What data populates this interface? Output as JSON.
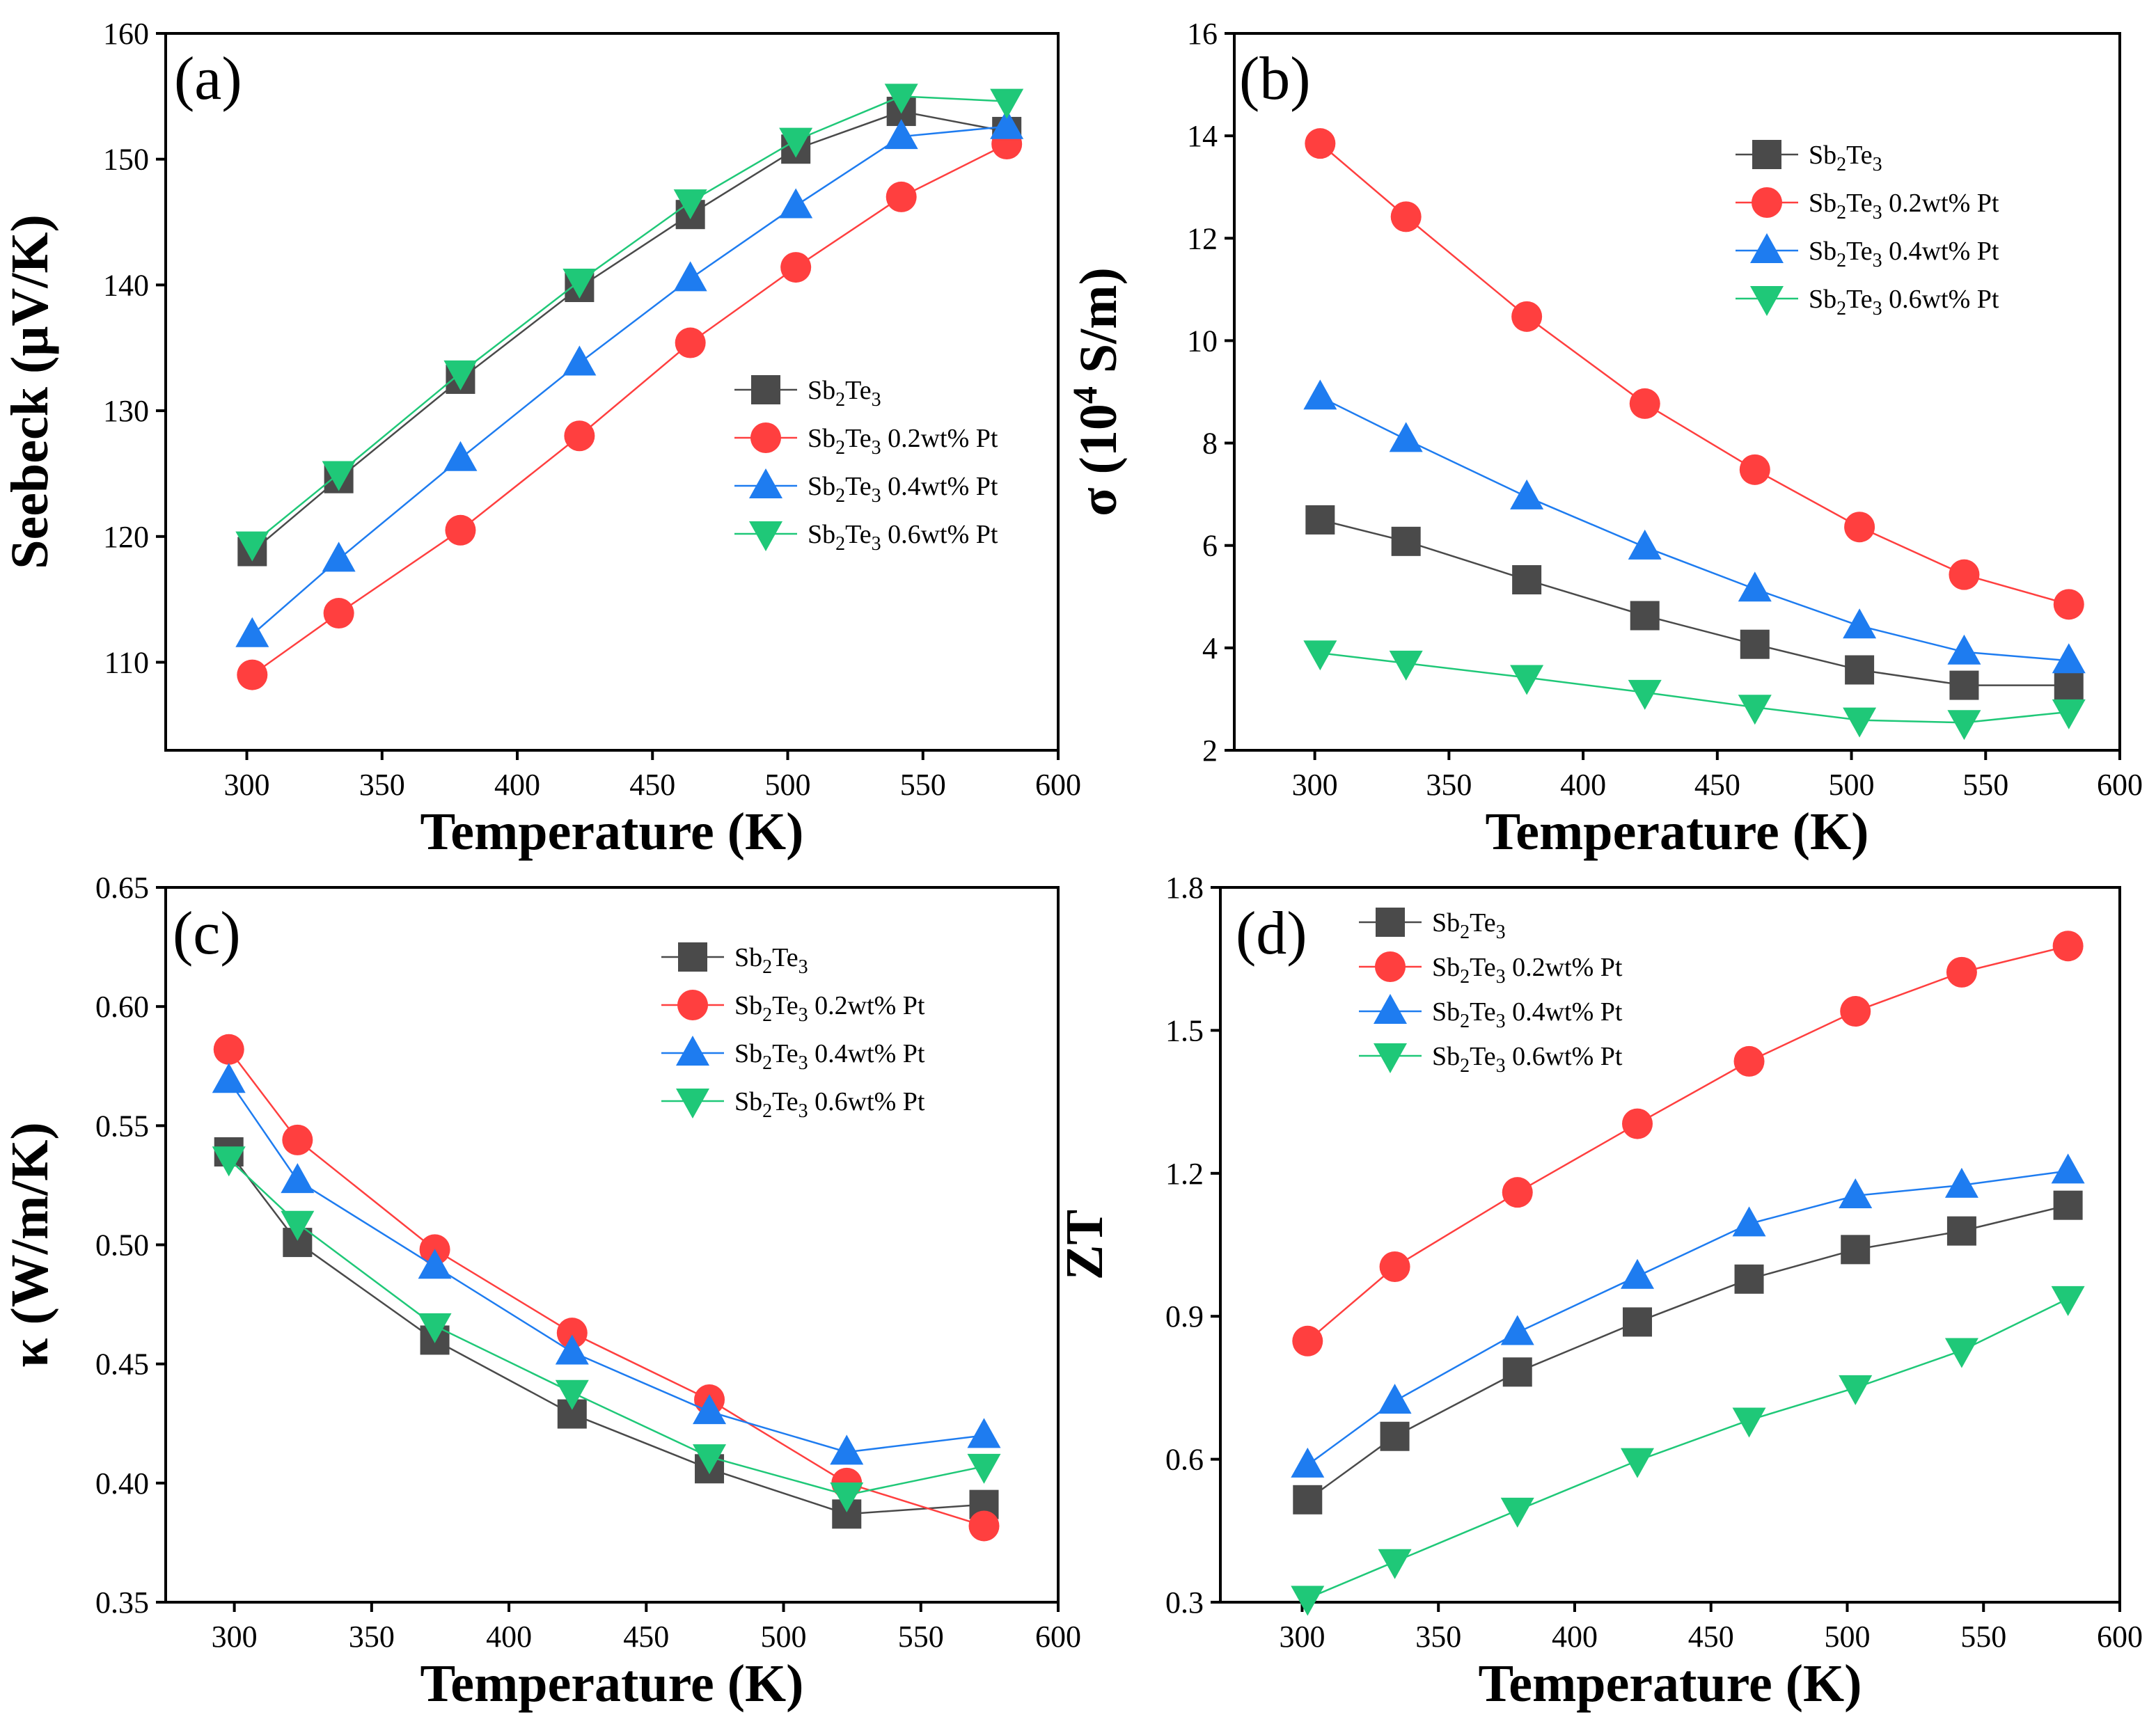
{
  "chart_data": [
    {
      "type": "line",
      "panel_label": "(a)",
      "title": "",
      "xlabel": "Temperature (K)",
      "ylabel": "Seebeck (μV/K)",
      "xlim": [
        270,
        600
      ],
      "ylim": [
        103,
        160
      ],
      "xticks": [
        300,
        350,
        400,
        450,
        500,
        550,
        600
      ],
      "yticks": [
        110,
        120,
        130,
        140,
        150,
        160
      ],
      "legend_position": "right",
      "series": [
        {
          "name": "Sb2Te3",
          "base": "Sb",
          "sub1": "2",
          "mid": "Te",
          "sub2": "3",
          "suffix": "",
          "marker": "square",
          "color": "#4a4a4a",
          "x": [
            302,
            334,
            379,
            423,
            464,
            503,
            542,
            581
          ],
          "y": [
            118.8,
            124.6,
            132.5,
            139.8,
            145.6,
            150.8,
            153.8,
            152.2
          ]
        },
        {
          "name": "Sb2Te3 0.2wt% Pt",
          "base": "Sb",
          "sub1": "2",
          "mid": "Te",
          "sub2": "3",
          "suffix": " 0.2wt% Pt",
          "marker": "circle",
          "color": "#ff3f3f",
          "x": [
            302,
            334,
            379,
            423,
            464,
            503,
            542,
            581
          ],
          "y": [
            109.0,
            113.9,
            120.5,
            128.0,
            135.4,
            141.4,
            147.0,
            151.2
          ]
        },
        {
          "name": "Sb2Te3 0.4wt% Pt",
          "base": "Sb",
          "sub1": "2",
          "mid": "Te",
          "sub2": "3",
          "suffix": " 0.4wt% Pt",
          "marker": "triangle-up",
          "color": "#1e7cf0",
          "x": [
            302,
            334,
            379,
            423,
            464,
            503,
            542,
            581
          ],
          "y": [
            112.2,
            118.2,
            126.2,
            133.8,
            140.5,
            146.3,
            151.8,
            152.6
          ]
        },
        {
          "name": "Sb2Te3 0.6wt% Pt",
          "base": "Sb",
          "sub1": "2",
          "mid": "Te",
          "sub2": "3",
          "suffix": " 0.6wt% Pt",
          "marker": "triangle-down",
          "color": "#1fc878",
          "x": [
            302,
            334,
            379,
            423,
            464,
            503,
            542,
            581
          ],
          "y": [
            119.4,
            125.0,
            133.0,
            140.3,
            146.6,
            151.5,
            155.0,
            154.6
          ]
        }
      ]
    },
    {
      "type": "line",
      "panel_label": "(b)",
      "title": "",
      "xlabel": "Temperature (K)",
      "ylabel_prefix": "σ (10",
      "ylabel_sup": "4",
      "ylabel_suffix": " S/m)",
      "xlim": [
        270,
        600
      ],
      "ylim": [
        2,
        16
      ],
      "xticks": [
        300,
        350,
        400,
        450,
        500,
        550,
        600
      ],
      "yticks": [
        2,
        4,
        6,
        8,
        10,
        12,
        14,
        16
      ],
      "legend_position": "top-right",
      "series": [
        {
          "name": "Sb2Te3",
          "base": "Sb",
          "sub1": "2",
          "mid": "Te",
          "sub2": "3",
          "suffix": "",
          "marker": "square",
          "color": "#4a4a4a",
          "x": [
            302,
            334,
            379,
            423,
            464,
            503,
            542,
            581
          ],
          "y": [
            6.5,
            6.08,
            5.33,
            4.63,
            4.07,
            3.57,
            3.27,
            3.27
          ]
        },
        {
          "name": "Sb2Te3 0.2wt% Pt",
          "base": "Sb",
          "sub1": "2",
          "mid": "Te",
          "sub2": "3",
          "suffix": " 0.2wt% Pt",
          "marker": "circle",
          "color": "#ff3f3f",
          "x": [
            302,
            334,
            379,
            423,
            464,
            503,
            542,
            581
          ],
          "y": [
            13.85,
            12.42,
            10.47,
            8.77,
            7.48,
            6.36,
            5.43,
            4.85
          ]
        },
        {
          "name": "Sb2Te3 0.4wt% Pt",
          "base": "Sb",
          "sub1": "2",
          "mid": "Te",
          "sub2": "3",
          "suffix": " 0.4wt% Pt",
          "marker": "triangle-up",
          "color": "#1e7cf0",
          "x": [
            302,
            334,
            379,
            423,
            464,
            503,
            542,
            581
          ],
          "y": [
            8.9,
            8.07,
            6.95,
            5.97,
            5.15,
            4.43,
            3.92,
            3.75
          ]
        },
        {
          "name": "Sb2Te3 0.6wt% Pt",
          "base": "Sb",
          "sub1": "2",
          "mid": "Te",
          "sub2": "3",
          "suffix": " 0.6wt% Pt",
          "marker": "triangle-down",
          "color": "#1fc878",
          "x": [
            302,
            334,
            379,
            423,
            464,
            503,
            542,
            581
          ],
          "y": [
            3.9,
            3.7,
            3.42,
            3.13,
            2.84,
            2.59,
            2.54,
            2.75
          ]
        }
      ]
    },
    {
      "type": "line",
      "panel_label": "(c)",
      "title": "",
      "xlabel": "Temperature (K)",
      "ylabel": "κ (W/m/K)",
      "xlim": [
        275,
        600
      ],
      "ylim": [
        0.35,
        0.65
      ],
      "xticks": [
        300,
        350,
        400,
        450,
        500,
        550,
        600
      ],
      "yticks": [
        0.35,
        0.4,
        0.45,
        0.5,
        0.55,
        0.6,
        0.65
      ],
      "ytick_labels": [
        "0.35",
        "0.40",
        "0.45",
        "0.50",
        "0.55",
        "0.60",
        "0.65"
      ],
      "legend_position": "top-right",
      "series": [
        {
          "name": "Sb2Te3",
          "base": "Sb",
          "sub1": "2",
          "mid": "Te",
          "sub2": "3",
          "suffix": "",
          "marker": "square",
          "color": "#4a4a4a",
          "x": [
            298,
            323,
            373,
            423,
            473,
            523,
            573
          ],
          "y": [
            0.539,
            0.501,
            0.46,
            0.429,
            0.406,
            0.387,
            0.391
          ]
        },
        {
          "name": "Sb2Te3 0.2wt% Pt",
          "base": "Sb",
          "sub1": "2",
          "mid": "Te",
          "sub2": "3",
          "suffix": " 0.2wt% Pt",
          "marker": "circle",
          "color": "#ff3f3f",
          "x": [
            298,
            323,
            373,
            423,
            473,
            523,
            573
          ],
          "y": [
            0.582,
            0.544,
            0.498,
            0.463,
            0.435,
            0.4,
            0.382
          ]
        },
        {
          "name": "Sb2Te3 0.4wt% Pt",
          "base": "Sb",
          "sub1": "2",
          "mid": "Te",
          "sub2": "3",
          "suffix": " 0.4wt% Pt",
          "marker": "triangle-up",
          "color": "#1e7cf0",
          "x": [
            298,
            323,
            373,
            423,
            473,
            523,
            573
          ],
          "y": [
            0.569,
            0.527,
            0.491,
            0.455,
            0.43,
            0.413,
            0.42
          ]
        },
        {
          "name": "Sb2Te3 0.6wt% Pt",
          "base": "Sb",
          "sub1": "2",
          "mid": "Te",
          "sub2": "3",
          "suffix": " 0.6wt% Pt",
          "marker": "triangle-down",
          "color": "#1fc878",
          "x": [
            298,
            323,
            373,
            423,
            473,
            523,
            573
          ],
          "y": [
            0.536,
            0.509,
            0.466,
            0.438,
            0.411,
            0.395,
            0.407
          ]
        }
      ]
    },
    {
      "type": "line",
      "panel_label": "(d)",
      "title": "",
      "xlabel": "Temperature (K)",
      "ylabel": "ZT",
      "xlim": [
        270,
        600
      ],
      "ylim": [
        0.3,
        1.8
      ],
      "xticks": [
        300,
        350,
        400,
        450,
        500,
        550,
        600
      ],
      "yticks": [
        0.3,
        0.6,
        0.9,
        1.2,
        1.5,
        1.8
      ],
      "ytick_labels": [
        "0.3",
        "0.6",
        "0.9",
        "1.2",
        "1.5",
        "1.8"
      ],
      "legend_position": "top-left",
      "series": [
        {
          "name": "Sb2Te3",
          "base": "Sb",
          "sub1": "2",
          "mid": "Te",
          "sub2": "3",
          "suffix": "",
          "marker": "square",
          "color": "#4a4a4a",
          "x": [
            302,
            334,
            379,
            423,
            464,
            503,
            542,
            581
          ],
          "y": [
            0.515,
            0.648,
            0.783,
            0.888,
            0.978,
            1.04,
            1.079,
            1.133
          ]
        },
        {
          "name": "Sb2Te3 0.2wt% Pt",
          "base": "Sb",
          "sub1": "2",
          "mid": "Te",
          "sub2": "3",
          "suffix": " 0.2wt% Pt",
          "marker": "circle",
          "color": "#ff3f3f",
          "x": [
            302,
            334,
            379,
            423,
            464,
            503,
            542,
            581
          ],
          "y": [
            0.848,
            1.004,
            1.16,
            1.304,
            1.435,
            1.54,
            1.622,
            1.677
          ]
        },
        {
          "name": "Sb2Te3 0.4wt% Pt",
          "base": "Sb",
          "sub1": "2",
          "mid": "Te",
          "sub2": "3",
          "suffix": " 0.4wt% Pt",
          "marker": "triangle-up",
          "color": "#1e7cf0",
          "x": [
            302,
            334,
            379,
            423,
            464,
            503,
            542,
            581
          ],
          "y": [
            0.588,
            0.722,
            0.866,
            0.984,
            1.094,
            1.153,
            1.175,
            1.205
          ]
        },
        {
          "name": "Sb2Te3 0.6wt% Pt",
          "base": "Sb",
          "sub1": "2",
          "mid": "Te",
          "sub2": "3",
          "suffix": " 0.6wt% Pt",
          "marker": "triangle-down",
          "color": "#1fc878",
          "x": [
            302,
            334,
            379,
            423,
            464,
            503,
            542,
            581
          ],
          "y": [
            0.308,
            0.385,
            0.493,
            0.597,
            0.682,
            0.75,
            0.828,
            0.937
          ]
        }
      ]
    }
  ]
}
